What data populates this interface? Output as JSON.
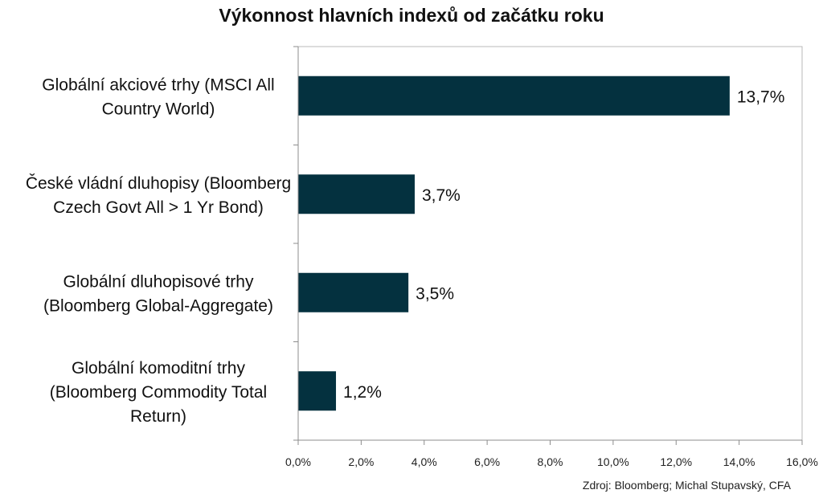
{
  "chart_data": {
    "type": "bar",
    "orientation": "horizontal",
    "title": "Výkonnost hlavních indexů od začátku roku",
    "categories": [
      [
        "Globální akciové trhy (MSCI All",
        "Country World)"
      ],
      [
        "České vládní dluhopisy (Bloomberg",
        "Czech Govt All > 1 Yr Bond)"
      ],
      [
        "Globální dluhopisové trhy",
        "(Bloomberg Global-Aggregate)"
      ],
      [
        "Globální komoditní trhy",
        "(Bloomberg Commodity Total",
        "Return)"
      ]
    ],
    "values": [
      13.7,
      3.7,
      3.5,
      1.2
    ],
    "value_labels": [
      "13,7%",
      "3,7%",
      "3,5%",
      "1,2%"
    ],
    "xlim": [
      0,
      16
    ],
    "xticks": [
      0,
      2,
      4,
      6,
      8,
      10,
      12,
      14,
      16
    ],
    "xtick_labels": [
      "0,0%",
      "2,0%",
      "4,0%",
      "6,0%",
      "8,0%",
      "10,0%",
      "12,0%",
      "14,0%",
      "16,0%"
    ],
    "bar_color": "#04313f",
    "grid": false,
    "legend": "none"
  },
  "source": "Zdroj: Bloomberg; Michal Stupavský, CFA"
}
